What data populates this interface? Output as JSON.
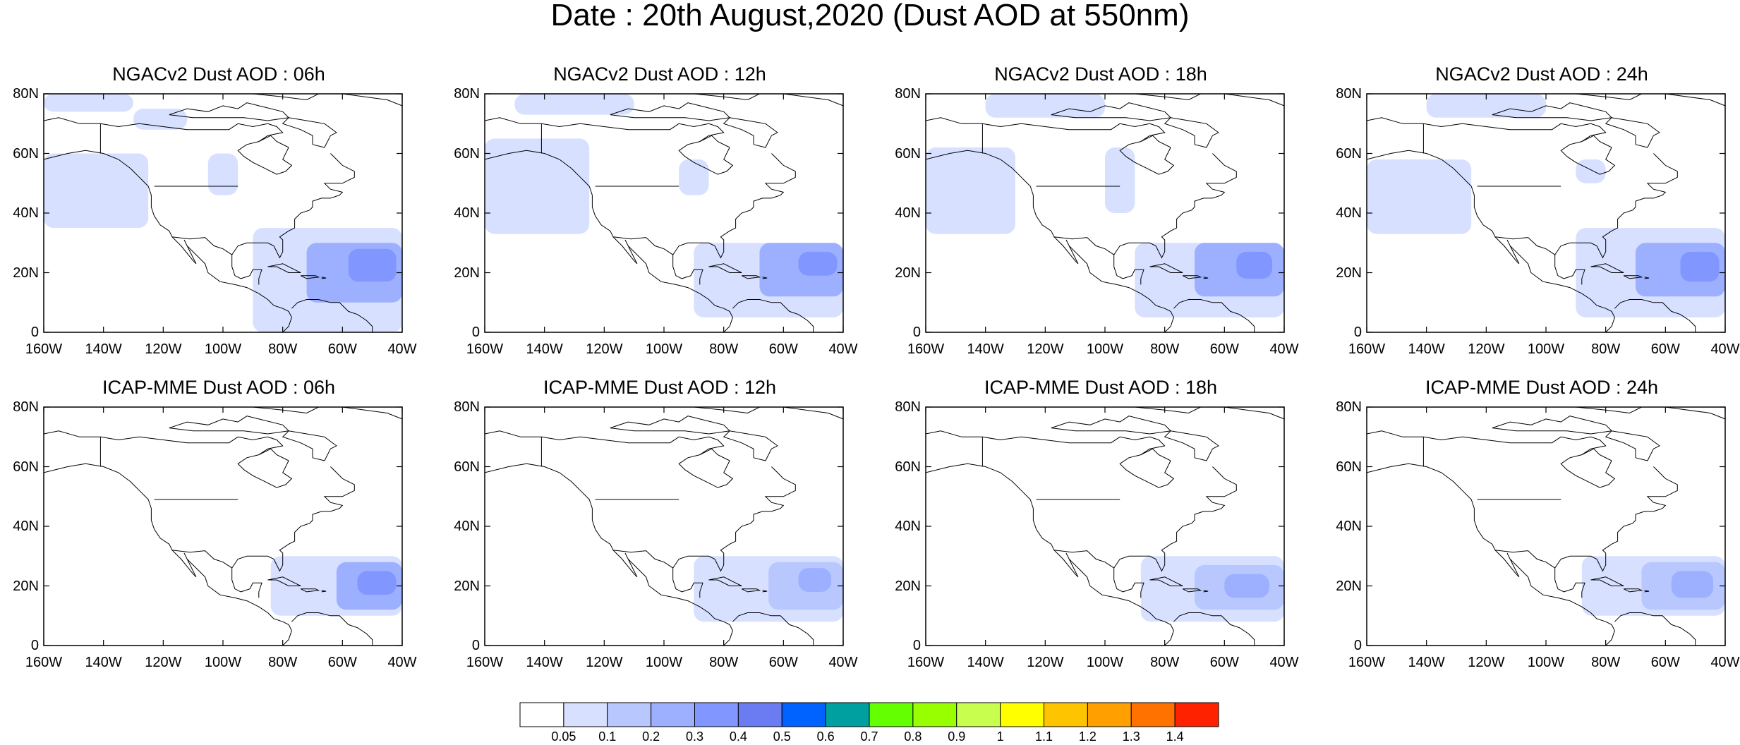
{
  "title": "Date : 20th August,2020 (Dust AOD at 550nm)",
  "axes": {
    "x_ticks": [
      "160W",
      "140W",
      "120W",
      "100W",
      "80W",
      "60W",
      "40W"
    ],
    "y_ticks": [
      "80N",
      "60N",
      "40N",
      "20N",
      "0"
    ],
    "lon_range": [
      -160,
      -40
    ],
    "lat_range": [
      0,
      80
    ]
  },
  "colors": {
    "bin_colors": [
      "#ffffff",
      "#d7e0ff",
      "#b9c7ff",
      "#9cb0ff",
      "#8296ff",
      "#6b7cf3",
      "#0062ff",
      "#00a0a0",
      "#64ff00",
      "#98ff00",
      "#c8ff4e",
      "#ffff00",
      "#ffc400",
      "#ffa000",
      "#ff7200",
      "#ff2200"
    ],
    "coast": "#000000",
    "frame": "#000000"
  },
  "colorbar": {
    "labels": [
      "0.05",
      "0.1",
      "0.2",
      "0.3",
      "0.4",
      "0.5",
      "0.6",
      "0.7",
      "0.8",
      "0.9",
      "1",
      "1.1",
      "1.2",
      "1.3",
      "1.4"
    ]
  },
  "panels": [
    {
      "title": "NGACv2 Dust AOD : 06h",
      "aod_fields": [
        {
          "aod": 0.06,
          "lon": [
            -160,
            -125
          ],
          "lat": [
            35,
            60
          ]
        },
        {
          "aod": 0.06,
          "lon": [
            -160,
            -130
          ],
          "lat": [
            74,
            80
          ]
        },
        {
          "aod": 0.06,
          "lon": [
            -130,
            -112
          ],
          "lat": [
            68,
            75
          ]
        },
        {
          "aod": 0.06,
          "lon": [
            -105,
            -95
          ],
          "lat": [
            46,
            60
          ]
        },
        {
          "aod": 0.07,
          "lon": [
            -90,
            -40
          ],
          "lat": [
            0,
            35
          ]
        },
        {
          "aod": 0.2,
          "lon": [
            -72,
            -40
          ],
          "lat": [
            10,
            30
          ]
        },
        {
          "aod": 0.35,
          "lon": [
            -58,
            -42
          ],
          "lat": [
            17,
            28
          ]
        }
      ]
    },
    {
      "title": "NGACv2 Dust AOD : 12h",
      "aod_fields": [
        {
          "aod": 0.06,
          "lon": [
            -160,
            -125
          ],
          "lat": [
            33,
            65
          ]
        },
        {
          "aod": 0.06,
          "lon": [
            -150,
            -110
          ],
          "lat": [
            73,
            80
          ]
        },
        {
          "aod": 0.06,
          "lon": [
            -95,
            -85
          ],
          "lat": [
            46,
            58
          ]
        },
        {
          "aod": 0.07,
          "lon": [
            -90,
            -40
          ],
          "lat": [
            5,
            30
          ]
        },
        {
          "aod": 0.2,
          "lon": [
            -68,
            -40
          ],
          "lat": [
            12,
            30
          ]
        },
        {
          "aod": 0.35,
          "lon": [
            -55,
            -42
          ],
          "lat": [
            19,
            27
          ]
        }
      ]
    },
    {
      "title": "NGACv2 Dust AOD : 18h",
      "aod_fields": [
        {
          "aod": 0.06,
          "lon": [
            -160,
            -130
          ],
          "lat": [
            33,
            62
          ]
        },
        {
          "aod": 0.06,
          "lon": [
            -140,
            -100
          ],
          "lat": [
            72,
            80
          ]
        },
        {
          "aod": 0.06,
          "lon": [
            -100,
            -90
          ],
          "lat": [
            40,
            62
          ]
        },
        {
          "aod": 0.07,
          "lon": [
            -90,
            -40
          ],
          "lat": [
            5,
            30
          ]
        },
        {
          "aod": 0.2,
          "lon": [
            -70,
            -40
          ],
          "lat": [
            12,
            30
          ]
        },
        {
          "aod": 0.35,
          "lon": [
            -56,
            -44
          ],
          "lat": [
            18,
            27
          ]
        }
      ]
    },
    {
      "title": "NGACv2 Dust AOD : 24h",
      "aod_fields": [
        {
          "aod": 0.06,
          "lon": [
            -160,
            -125
          ],
          "lat": [
            33,
            58
          ]
        },
        {
          "aod": 0.06,
          "lon": [
            -140,
            -100
          ],
          "lat": [
            72,
            80
          ]
        },
        {
          "aod": 0.06,
          "lon": [
            -90,
            -80
          ],
          "lat": [
            50,
            58
          ]
        },
        {
          "aod": 0.07,
          "lon": [
            -90,
            -40
          ],
          "lat": [
            5,
            35
          ]
        },
        {
          "aod": 0.2,
          "lon": [
            -70,
            -40
          ],
          "lat": [
            12,
            30
          ]
        },
        {
          "aod": 0.3,
          "lon": [
            -55,
            -42
          ],
          "lat": [
            17,
            27
          ]
        }
      ]
    },
    {
      "title": "ICAP-MME Dust AOD : 06h",
      "aod_fields": [
        {
          "aod": 0.07,
          "lon": [
            -84,
            -40
          ],
          "lat": [
            10,
            30
          ]
        },
        {
          "aod": 0.2,
          "lon": [
            -62,
            -40
          ],
          "lat": [
            12,
            28
          ]
        },
        {
          "aod": 0.3,
          "lon": [
            -55,
            -42
          ],
          "lat": [
            17,
            25
          ]
        }
      ]
    },
    {
      "title": "ICAP-MME Dust AOD : 12h",
      "aod_fields": [
        {
          "aod": 0.06,
          "lon": [
            -90,
            -40
          ],
          "lat": [
            8,
            30
          ]
        },
        {
          "aod": 0.15,
          "lon": [
            -65,
            -40
          ],
          "lat": [
            12,
            28
          ]
        },
        {
          "aod": 0.25,
          "lon": [
            -55,
            -44
          ],
          "lat": [
            18,
            26
          ]
        }
      ]
    },
    {
      "title": "ICAP-MME Dust AOD : 18h",
      "aod_fields": [
        {
          "aod": 0.06,
          "lon": [
            -88,
            -40
          ],
          "lat": [
            8,
            30
          ]
        },
        {
          "aod": 0.12,
          "lon": [
            -70,
            -40
          ],
          "lat": [
            12,
            27
          ]
        },
        {
          "aod": 0.2,
          "lon": [
            -60,
            -45
          ],
          "lat": [
            16,
            24
          ]
        }
      ]
    },
    {
      "title": "ICAP-MME Dust AOD : 24h",
      "aod_fields": [
        {
          "aod": 0.06,
          "lon": [
            -88,
            -40
          ],
          "lat": [
            10,
            30
          ]
        },
        {
          "aod": 0.12,
          "lon": [
            -68,
            -40
          ],
          "lat": [
            12,
            28
          ]
        },
        {
          "aod": 0.2,
          "lon": [
            -58,
            -44
          ],
          "lat": [
            16,
            25
          ]
        }
      ]
    }
  ]
}
